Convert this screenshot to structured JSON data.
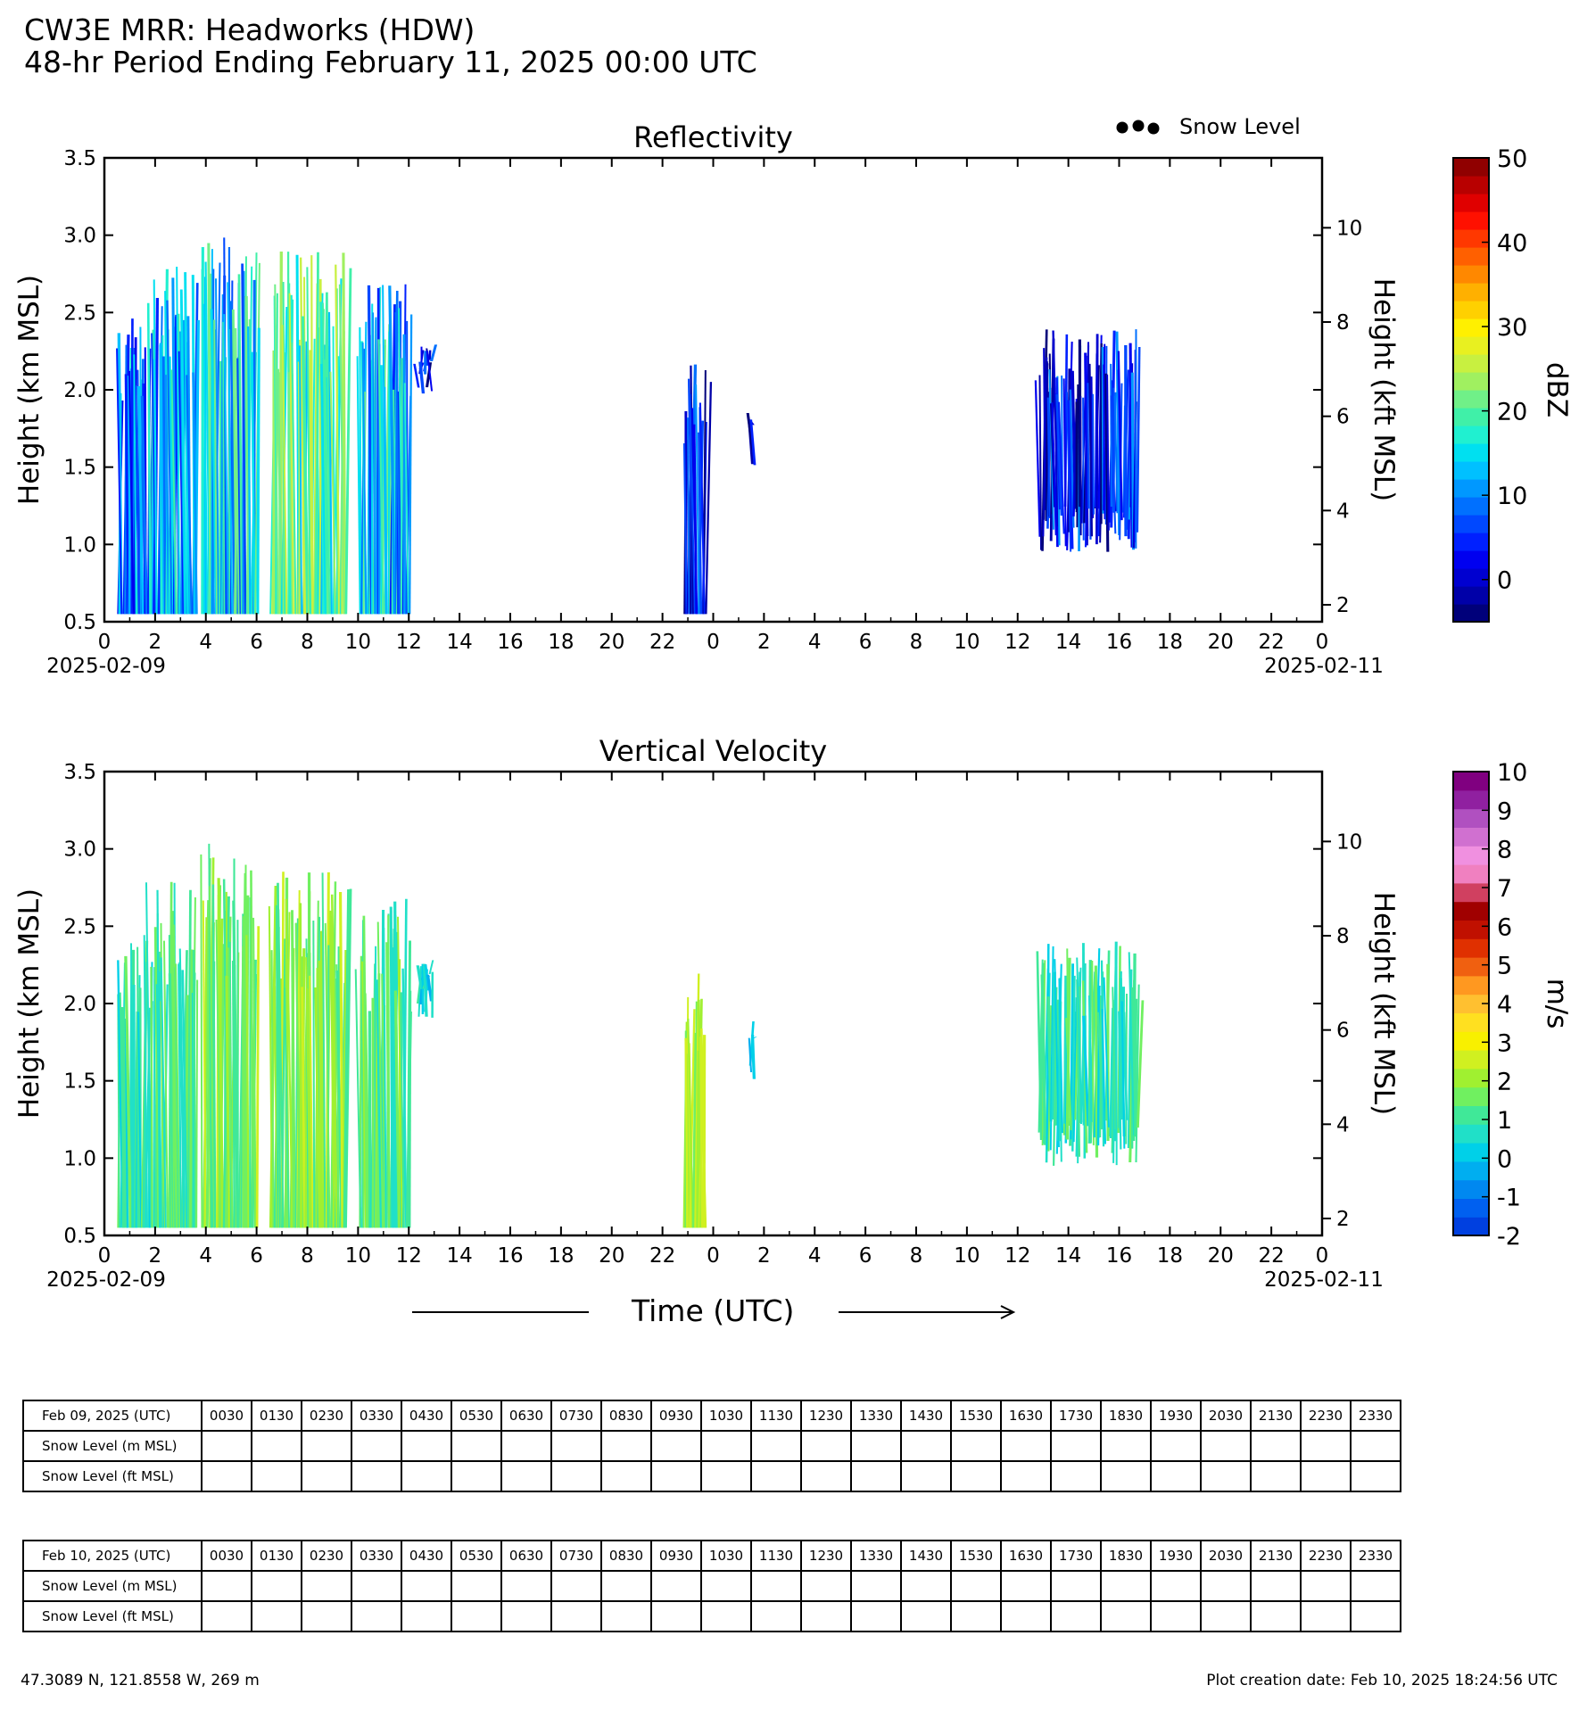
{
  "header": {
    "title": "CW3E MRR: Headworks (HDW)",
    "subtitle": "48-hr Period Ending February 11, 2025 00:00 UTC"
  },
  "legend": {
    "snow_level_label": "Snow Level"
  },
  "time_axis": {
    "label": "Time (UTC)"
  },
  "chart_data": [
    {
      "type": "heatmap",
      "title": "Reflectivity",
      "ylabel": "Height (km MSL)",
      "ylabel_right": "Height (kft MSL)",
      "ylim": [
        0.5,
        3.5
      ],
      "yticks": [
        "0.5",
        "1.0",
        "1.5",
        "2.0",
        "2.5",
        "3.0",
        "3.5"
      ],
      "yticks_right": [
        "2",
        "4",
        "6",
        "8",
        "10"
      ],
      "xlim_hours": [
        0,
        48
      ],
      "xticks": [
        "0",
        "2",
        "4",
        "6",
        "8",
        "10",
        "12",
        "14",
        "16",
        "18",
        "20",
        "22",
        "0",
        "2",
        "4",
        "6",
        "8",
        "10",
        "12",
        "14",
        "16",
        "18",
        "20",
        "22",
        "0"
      ],
      "date_start": "2025-02-09",
      "date_end": "2025-02-11",
      "colorbar": {
        "label": "dBZ",
        "range": [
          -5,
          50
        ],
        "ticks": [
          "0",
          "10",
          "20",
          "30",
          "40",
          "50"
        ],
        "colors": [
          "#00007a",
          "#0000a8",
          "#0000d0",
          "#0000f0",
          "#0020ff",
          "#0048ff",
          "#0070ff",
          "#0098ff",
          "#00c0ff",
          "#00e0f0",
          "#20f0d0",
          "#40f0a8",
          "#70f088",
          "#a0f060",
          "#c8f040",
          "#e8f020",
          "#fff000",
          "#ffd000",
          "#ffb000",
          "#ff8800",
          "#ff6000",
          "#ff3800",
          "#ff1000",
          "#e00000",
          "#b80000",
          "#900000"
        ]
      },
      "series": [
        {
          "x0": 0.5,
          "x1": 1.7,
          "top": 2.5,
          "bottom": 0.55,
          "dbz": 9
        },
        {
          "x0": 1.7,
          "x1": 3.6,
          "top": 2.8,
          "bottom": 0.55,
          "dbz": 12
        },
        {
          "x0": 3.8,
          "x1": 6.0,
          "top": 3.05,
          "bottom": 0.55,
          "dbz": 14
        },
        {
          "x0": 6.5,
          "x1": 9.5,
          "top": 2.9,
          "bottom": 0.55,
          "dbz": 20
        },
        {
          "x0": 10.0,
          "x1": 12.0,
          "top": 2.7,
          "bottom": 0.55,
          "dbz": 13
        },
        {
          "x0": 12.3,
          "x1": 12.9,
          "top": 2.3,
          "bottom": 1.9,
          "dbz": 3
        },
        {
          "x0": 22.8,
          "x1": 23.7,
          "top": 2.2,
          "bottom": 0.55,
          "dbz": 3
        },
        {
          "x0": 25.4,
          "x1": 25.6,
          "top": 1.9,
          "bottom": 1.5,
          "dbz": 4
        },
        {
          "x0": 36.8,
          "x1": 40.7,
          "top": 2.4,
          "bottom": 0.95,
          "dbz": 3
        }
      ]
    },
    {
      "type": "heatmap",
      "title": "Vertical Velocity",
      "ylabel": "Height (km MSL)",
      "ylabel_right": "Height (kft MSL)",
      "ylim": [
        0.5,
        3.5
      ],
      "yticks": [
        "0.5",
        "1.0",
        "1.5",
        "2.0",
        "2.5",
        "3.0",
        "3.5"
      ],
      "yticks_right": [
        "2",
        "4",
        "6",
        "8",
        "10"
      ],
      "xlim_hours": [
        0,
        48
      ],
      "xticks": [
        "0",
        "2",
        "4",
        "6",
        "8",
        "10",
        "12",
        "14",
        "16",
        "18",
        "20",
        "22",
        "0",
        "2",
        "4",
        "6",
        "8",
        "10",
        "12",
        "14",
        "16",
        "18",
        "20",
        "22",
        "0"
      ],
      "date_start": "2025-02-09",
      "date_end": "2025-02-11",
      "colorbar": {
        "label": "m/s",
        "range": [
          -2,
          10
        ],
        "ticks": [
          "-2",
          "-1",
          "0",
          "1",
          "2",
          "3",
          "4",
          "5",
          "6",
          "7",
          "8",
          "9",
          "10"
        ],
        "colors": [
          "#0040e0",
          "#0060f0",
          "#0088f0",
          "#00aef0",
          "#00d0e8",
          "#20e0c8",
          "#40e898",
          "#70f060",
          "#a0f030",
          "#d0f020",
          "#f8f000",
          "#ffe020",
          "#ffc030",
          "#ff9820",
          "#f06010",
          "#e03000",
          "#c01000",
          "#a00000",
          "#d04060",
          "#f080c0",
          "#f090e0",
          "#d070d0",
          "#b050c0",
          "#9020a0",
          "#800080"
        ]
      },
      "series": [
        {
          "x0": 0.5,
          "x1": 1.7,
          "top": 2.5,
          "bottom": 0.55,
          "ms": 1.0
        },
        {
          "x0": 1.7,
          "x1": 3.6,
          "top": 2.8,
          "bottom": 0.55,
          "ms": 1.1
        },
        {
          "x0": 3.8,
          "x1": 6.0,
          "top": 3.05,
          "bottom": 0.55,
          "ms": 1.7
        },
        {
          "x0": 6.5,
          "x1": 9.5,
          "top": 2.9,
          "bottom": 0.55,
          "ms": 1.7
        },
        {
          "x0": 10.0,
          "x1": 12.0,
          "top": 2.7,
          "bottom": 0.55,
          "ms": 1.2
        },
        {
          "x0": 12.3,
          "x1": 12.9,
          "top": 2.3,
          "bottom": 1.9,
          "ms": 0.4
        },
        {
          "x0": 22.8,
          "x1": 23.7,
          "top": 2.2,
          "bottom": 0.55,
          "ms": 2.0
        },
        {
          "x0": 25.4,
          "x1": 25.6,
          "top": 1.9,
          "bottom": 1.5,
          "ms": 0.4
        },
        {
          "x0": 36.8,
          "x1": 40.7,
          "top": 2.4,
          "bottom": 0.95,
          "ms": 0.8
        }
      ]
    }
  ],
  "snow_tables": [
    {
      "date_header": "Feb 09, 2025 (UTC)",
      "times": [
        "0030",
        "0130",
        "0230",
        "0330",
        "0430",
        "0530",
        "0630",
        "0730",
        "0830",
        "0930",
        "1030",
        "1130",
        "1230",
        "1330",
        "1430",
        "1530",
        "1630",
        "1730",
        "1830",
        "1930",
        "2030",
        "2130",
        "2230",
        "2330"
      ],
      "row_m": "Snow Level (m MSL)",
      "row_ft": "Snow Level (ft MSL)"
    },
    {
      "date_header": "Feb 10, 2025 (UTC)",
      "times": [
        "0030",
        "0130",
        "0230",
        "0330",
        "0430",
        "0530",
        "0630",
        "0730",
        "0830",
        "0930",
        "1030",
        "1130",
        "1230",
        "1330",
        "1430",
        "1530",
        "1630",
        "1730",
        "1830",
        "1930",
        "2030",
        "2130",
        "2230",
        "2330"
      ],
      "row_m": "Snow Level (m MSL)",
      "row_ft": "Snow Level (ft MSL)"
    }
  ],
  "footer": {
    "location": "47.3089 N, 121.8558 W, 269 m",
    "created": "Plot creation date: Feb 10, 2025 18:24:56 UTC"
  }
}
